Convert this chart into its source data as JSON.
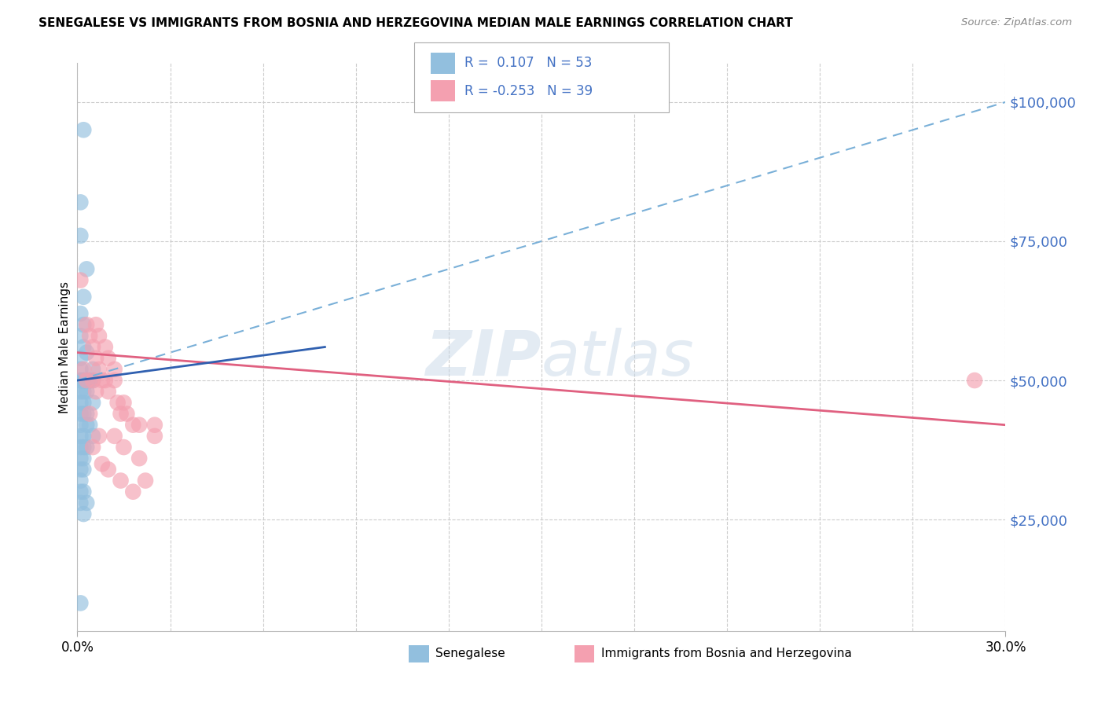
{
  "title": "SENEGALESE VS IMMIGRANTS FROM BOSNIA AND HERZEGOVINA MEDIAN MALE EARNINGS CORRELATION CHART",
  "source": "Source: ZipAtlas.com",
  "ylabel": "Median Male Earnings",
  "yticks": [
    25000,
    50000,
    75000,
    100000
  ],
  "ytick_labels": [
    "$25,000",
    "$50,000",
    "$75,000",
    "$100,000"
  ],
  "xlim": [
    0.0,
    0.3
  ],
  "ylim": [
    5000,
    107000
  ],
  "senegalese_color": "#92bfde",
  "bosnia_color": "#f4a0b0",
  "trend_blue_dashed": "#7ab0d8",
  "trend_pink_solid": "#e06080",
  "trend_blue_solid": "#3060b0",
  "watermark_color": "#c8d8e8",
  "watermark_alpha": 0.5,
  "legend_color": "#4472c4",
  "senegalese_scatter": [
    [
      0.001,
      82000
    ],
    [
      0.003,
      70000
    ],
    [
      0.001,
      76000
    ],
    [
      0.002,
      65000
    ],
    [
      0.001,
      62000
    ],
    [
      0.002,
      60000
    ],
    [
      0.001,
      58000
    ],
    [
      0.002,
      56000
    ],
    [
      0.001,
      54000
    ],
    [
      0.001,
      52000
    ],
    [
      0.002,
      50000
    ],
    [
      0.001,
      50000
    ],
    [
      0.002,
      48000
    ],
    [
      0.001,
      48000
    ],
    [
      0.003,
      48000
    ],
    [
      0.001,
      46000
    ],
    [
      0.002,
      46000
    ],
    [
      0.001,
      44000
    ],
    [
      0.002,
      44000
    ],
    [
      0.001,
      42000
    ],
    [
      0.003,
      42000
    ],
    [
      0.001,
      40000
    ],
    [
      0.002,
      40000
    ],
    [
      0.001,
      38000
    ],
    [
      0.002,
      38000
    ],
    [
      0.001,
      36000
    ],
    [
      0.002,
      36000
    ],
    [
      0.001,
      34000
    ],
    [
      0.002,
      34000
    ],
    [
      0.001,
      32000
    ],
    [
      0.001,
      50000
    ],
    [
      0.002,
      50000
    ],
    [
      0.003,
      50000
    ],
    [
      0.004,
      50000
    ],
    [
      0.003,
      50000
    ],
    [
      0.002,
      50000
    ],
    [
      0.004,
      50000
    ],
    [
      0.005,
      50000
    ],
    [
      0.003,
      50000
    ],
    [
      0.003,
      44000
    ],
    [
      0.004,
      42000
    ],
    [
      0.005,
      40000
    ],
    [
      0.002,
      30000
    ],
    [
      0.003,
      28000
    ],
    [
      0.002,
      26000
    ],
    [
      0.001,
      30000
    ],
    [
      0.001,
      28000
    ],
    [
      0.003,
      38000
    ],
    [
      0.001,
      10000
    ],
    [
      0.003,
      55000
    ],
    [
      0.005,
      46000
    ],
    [
      0.005,
      52000
    ],
    [
      0.002,
      95000
    ]
  ],
  "bosnia_scatter": [
    [
      0.001,
      68000
    ],
    [
      0.003,
      60000
    ],
    [
      0.005,
      56000
    ],
    [
      0.004,
      58000
    ],
    [
      0.006,
      54000
    ],
    [
      0.007,
      52000
    ],
    [
      0.008,
      50000
    ],
    [
      0.009,
      50000
    ],
    [
      0.01,
      48000
    ],
    [
      0.012,
      50000
    ],
    [
      0.013,
      46000
    ],
    [
      0.014,
      44000
    ],
    [
      0.006,
      60000
    ],
    [
      0.007,
      58000
    ],
    [
      0.009,
      56000
    ],
    [
      0.01,
      54000
    ],
    [
      0.012,
      52000
    ],
    [
      0.015,
      46000
    ],
    [
      0.016,
      44000
    ],
    [
      0.018,
      42000
    ],
    [
      0.02,
      42000
    ],
    [
      0.003,
      50000
    ],
    [
      0.005,
      50000
    ],
    [
      0.006,
      48000
    ],
    [
      0.012,
      40000
    ],
    [
      0.015,
      38000
    ],
    [
      0.02,
      36000
    ],
    [
      0.025,
      42000
    ],
    [
      0.025,
      40000
    ],
    [
      0.002,
      52000
    ],
    [
      0.008,
      35000
    ],
    [
      0.01,
      34000
    ],
    [
      0.014,
      32000
    ],
    [
      0.018,
      30000
    ],
    [
      0.022,
      32000
    ],
    [
      0.007,
      40000
    ],
    [
      0.004,
      44000
    ],
    [
      0.005,
      38000
    ],
    [
      0.29,
      50000
    ]
  ]
}
